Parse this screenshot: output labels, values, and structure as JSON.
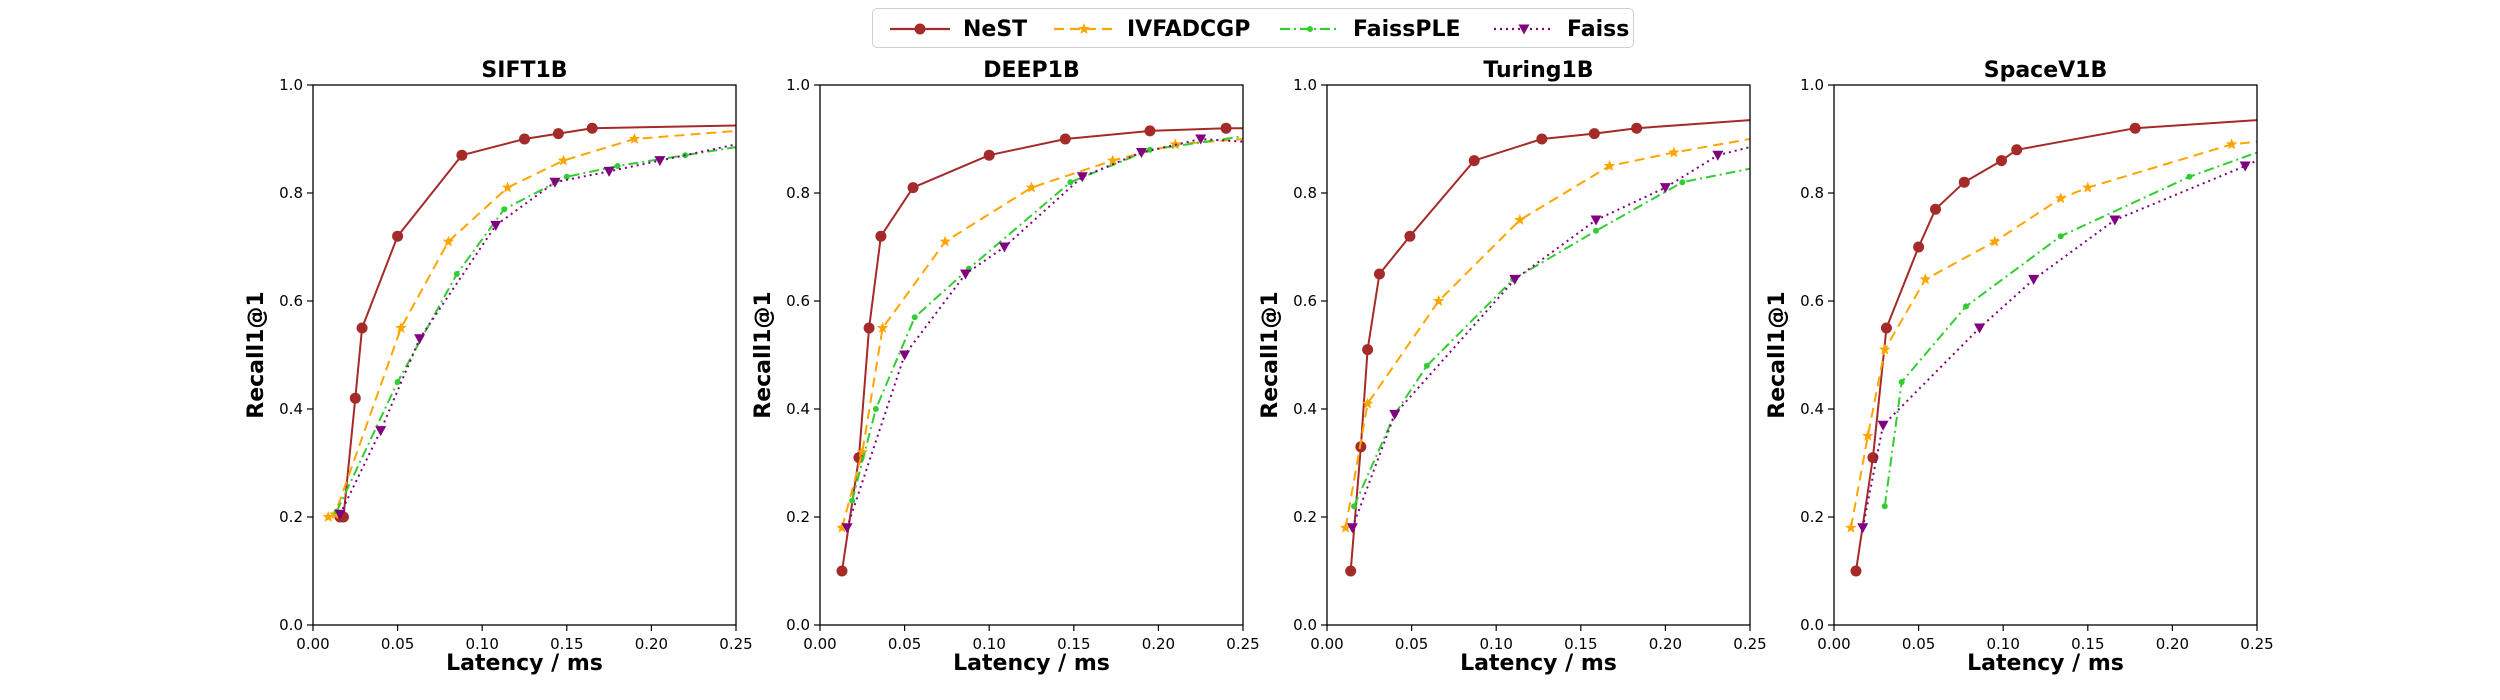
{
  "legend": [
    {
      "name": "NeST",
      "color": "#a52a2a",
      "marker": "circle",
      "dash": "solid"
    },
    {
      "name": "IVFADCGP",
      "color": "#ffa500",
      "marker": "star",
      "dash": "dashed"
    },
    {
      "name": "FaissPLE",
      "color": "#32cd32",
      "marker": "dot",
      "dash": "dashdot"
    },
    {
      "name": "Faiss",
      "color": "#800080",
      "marker": "triangle-down",
      "dash": "dotted"
    }
  ],
  "chart_data": [
    {
      "type": "line",
      "title": "SIFT1B",
      "xlabel": "Latency / ms",
      "ylabel": "Recall1@1",
      "xlim": [
        0,
        0.25
      ],
      "ylim": [
        0,
        1.0
      ],
      "xticks": [
        "0.00",
        "0.05",
        "0.10",
        "0.15",
        "0.20",
        "0.25"
      ],
      "yticks": [
        "0.0",
        "0.2",
        "0.4",
        "0.6",
        "0.8",
        "1.0"
      ],
      "series": [
        {
          "name": "NeST",
          "x": [
            0.016,
            0.018,
            0.025,
            0.029,
            0.05,
            0.088,
            0.125,
            0.145,
            0.165,
            0.25
          ],
          "y": [
            0.2,
            0.2,
            0.42,
            0.55,
            0.72,
            0.87,
            0.9,
            0.91,
            0.92,
            0.925
          ]
        },
        {
          "name": "IVFADCGP",
          "x": [
            0.009,
            0.013,
            0.052,
            0.08,
            0.115,
            0.148,
            0.19,
            0.25
          ],
          "y": [
            0.2,
            0.205,
            0.55,
            0.71,
            0.81,
            0.86,
            0.9,
            0.915
          ]
        },
        {
          "name": "FaissPLE",
          "x": [
            0.014,
            0.05,
            0.085,
            0.113,
            0.15,
            0.18,
            0.22,
            0.25
          ],
          "y": [
            0.21,
            0.45,
            0.65,
            0.77,
            0.83,
            0.85,
            0.87,
            0.885
          ]
        },
        {
          "name": "Faiss",
          "x": [
            0.016,
            0.04,
            0.063,
            0.108,
            0.143,
            0.175,
            0.205,
            0.25
          ],
          "y": [
            0.205,
            0.36,
            0.53,
            0.74,
            0.82,
            0.84,
            0.86,
            0.89
          ]
        }
      ]
    },
    {
      "type": "line",
      "title": "DEEP1B",
      "xlabel": "Latency / ms",
      "ylabel": "Recall1@1",
      "xlim": [
        0,
        0.25
      ],
      "ylim": [
        0,
        1.0
      ],
      "xticks": [
        "0.00",
        "0.05",
        "0.10",
        "0.15",
        "0.20",
        "0.25"
      ],
      "yticks": [
        "0.0",
        "0.2",
        "0.4",
        "0.6",
        "0.8",
        "1.0"
      ],
      "series": [
        {
          "name": "NeST",
          "x": [
            0.013,
            0.023,
            0.029,
            0.036,
            0.055,
            0.1,
            0.145,
            0.195,
            0.24,
            0.25
          ],
          "y": [
            0.1,
            0.31,
            0.55,
            0.72,
            0.81,
            0.87,
            0.9,
            0.915,
            0.92,
            0.92
          ]
        },
        {
          "name": "IVFADCGP",
          "x": [
            0.013,
            0.025,
            0.037,
            0.074,
            0.125,
            0.173,
            0.21,
            0.25
          ],
          "y": [
            0.18,
            0.32,
            0.55,
            0.71,
            0.81,
            0.86,
            0.89,
            0.9
          ]
        },
        {
          "name": "FaissPLE",
          "x": [
            0.019,
            0.033,
            0.056,
            0.088,
            0.148,
            0.195,
            0.25
          ],
          "y": [
            0.23,
            0.4,
            0.57,
            0.66,
            0.82,
            0.88,
            0.905
          ]
        },
        {
          "name": "Faiss",
          "x": [
            0.016,
            0.05,
            0.086,
            0.109,
            0.155,
            0.19,
            0.225,
            0.25
          ],
          "y": [
            0.18,
            0.5,
            0.65,
            0.7,
            0.83,
            0.875,
            0.9,
            0.895
          ]
        }
      ]
    },
    {
      "type": "line",
      "title": "Turing1B",
      "xlabel": "Latency / ms",
      "ylabel": "Recall1@1",
      "xlim": [
        0,
        0.25
      ],
      "ylim": [
        0,
        1.0
      ],
      "xticks": [
        "0.00",
        "0.05",
        "0.10",
        "0.15",
        "0.20",
        "0.25"
      ],
      "yticks": [
        "0.0",
        "0.2",
        "0.4",
        "0.6",
        "0.8",
        "1.0"
      ],
      "series": [
        {
          "name": "NeST",
          "x": [
            0.014,
            0.02,
            0.024,
            0.031,
            0.049,
            0.087,
            0.127,
            0.158,
            0.183,
            0.25
          ],
          "y": [
            0.1,
            0.33,
            0.51,
            0.65,
            0.72,
            0.86,
            0.9,
            0.91,
            0.92,
            0.935
          ]
        },
        {
          "name": "IVFADCGP",
          "x": [
            0.011,
            0.024,
            0.066,
            0.114,
            0.167,
            0.205,
            0.25
          ],
          "y": [
            0.18,
            0.41,
            0.6,
            0.75,
            0.85,
            0.875,
            0.9
          ]
        },
        {
          "name": "FaissPLE",
          "x": [
            0.016,
            0.04,
            0.059,
            0.11,
            0.159,
            0.21,
            0.25
          ],
          "y": [
            0.22,
            0.39,
            0.48,
            0.64,
            0.73,
            0.82,
            0.845
          ]
        },
        {
          "name": "Faiss",
          "x": [
            0.015,
            0.04,
            0.111,
            0.159,
            0.2,
            0.231,
            0.25
          ],
          "y": [
            0.18,
            0.39,
            0.64,
            0.75,
            0.81,
            0.87,
            0.885
          ]
        }
      ]
    },
    {
      "type": "line",
      "title": "SpaceV1B",
      "xlabel": "Latency / ms",
      "ylabel": "Recall1@1",
      "xlim": [
        0,
        0.25
      ],
      "ylim": [
        0,
        1.0
      ],
      "xticks": [
        "0.00",
        "0.05",
        "0.10",
        "0.15",
        "0.20",
        "0.25"
      ],
      "yticks": [
        "0.0",
        "0.2",
        "0.4",
        "0.6",
        "0.8",
        "1.0"
      ],
      "series": [
        {
          "name": "NeST",
          "x": [
            0.013,
            0.023,
            0.031,
            0.05,
            0.06,
            0.077,
            0.099,
            0.108,
            0.178,
            0.25
          ],
          "y": [
            0.1,
            0.31,
            0.55,
            0.7,
            0.77,
            0.82,
            0.86,
            0.88,
            0.92,
            0.935
          ]
        },
        {
          "name": "IVFADCGP",
          "x": [
            0.01,
            0.02,
            0.03,
            0.054,
            0.095,
            0.134,
            0.15,
            0.235,
            0.25
          ],
          "y": [
            0.18,
            0.35,
            0.51,
            0.64,
            0.71,
            0.79,
            0.81,
            0.89,
            0.895
          ]
        },
        {
          "name": "FaissPLE",
          "x": [
            0.03,
            0.04,
            0.078,
            0.134,
            0.21,
            0.25
          ],
          "y": [
            0.22,
            0.45,
            0.59,
            0.72,
            0.83,
            0.875
          ]
        },
        {
          "name": "Faiss",
          "x": [
            0.017,
            0.029,
            0.086,
            0.118,
            0.166,
            0.243,
            0.25
          ],
          "y": [
            0.18,
            0.37,
            0.55,
            0.64,
            0.75,
            0.85,
            0.86
          ]
        }
      ]
    }
  ]
}
